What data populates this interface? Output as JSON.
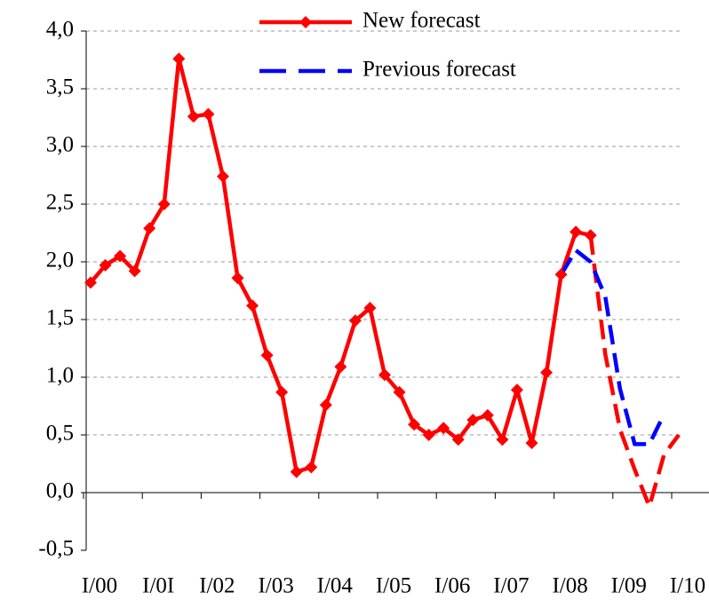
{
  "chart_data": {
    "type": "line",
    "categories": [
      "I/00",
      null,
      null,
      null,
      "I/0I",
      null,
      null,
      null,
      "I/02",
      null,
      null,
      null,
      "I/03",
      null,
      null,
      null,
      "I/04",
      null,
      null,
      null,
      "I/05",
      null,
      null,
      null,
      "I/06",
      null,
      null,
      null,
      "I/07",
      null,
      null,
      null,
      "I/08",
      null,
      null,
      null,
      "I/09",
      null,
      null,
      null,
      "I/10"
    ],
    "series": [
      {
        "name": "New forecast",
        "color": "#ff0000",
        "markers": true,
        "forecast_start": 34,
        "values": [
          1.82,
          1.97,
          2.05,
          1.92,
          2.29,
          2.5,
          3.76,
          3.26,
          3.28,
          2.74,
          1.86,
          1.62,
          1.19,
          0.87,
          0.18,
          0.22,
          0.76,
          1.09,
          1.49,
          1.6,
          1.02,
          0.87,
          0.59,
          0.5,
          0.56,
          0.46,
          0.63,
          0.67,
          0.46,
          0.89,
          0.43,
          1.04,
          1.89,
          2.26,
          2.23,
          1.2,
          0.55,
          0.2,
          -0.12,
          0.33,
          0.5
        ]
      },
      {
        "name": "Previous forecast",
        "color": "#0000ff",
        "dashed": true,
        "values": [
          null,
          null,
          null,
          null,
          null,
          null,
          null,
          null,
          null,
          null,
          null,
          null,
          null,
          null,
          null,
          null,
          null,
          null,
          null,
          null,
          null,
          null,
          null,
          null,
          null,
          null,
          null,
          null,
          null,
          null,
          null,
          null,
          1.89,
          2.1,
          2.0,
          1.7,
          0.9,
          0.42,
          0.42,
          0.68,
          null
        ]
      }
    ],
    "ylim": [
      -0.5,
      4.0
    ],
    "yticks": [
      {
        "value": -0.5,
        "label": "-0,5"
      },
      {
        "value": 0,
        "label": "0,0"
      },
      {
        "value": 0.5,
        "label": "0,5"
      },
      {
        "value": 1.0,
        "label": "1,0"
      },
      {
        "value": 1.5,
        "label": "1,5"
      },
      {
        "value": 2.0,
        "label": "2,0"
      },
      {
        "value": 2.5,
        "label": "2,5"
      },
      {
        "value": 3.0,
        "label": "3,0"
      },
      {
        "value": 3.5,
        "label": "3,5"
      },
      {
        "value": 4.0,
        "label": "4,0"
      }
    ],
    "grid": true
  }
}
